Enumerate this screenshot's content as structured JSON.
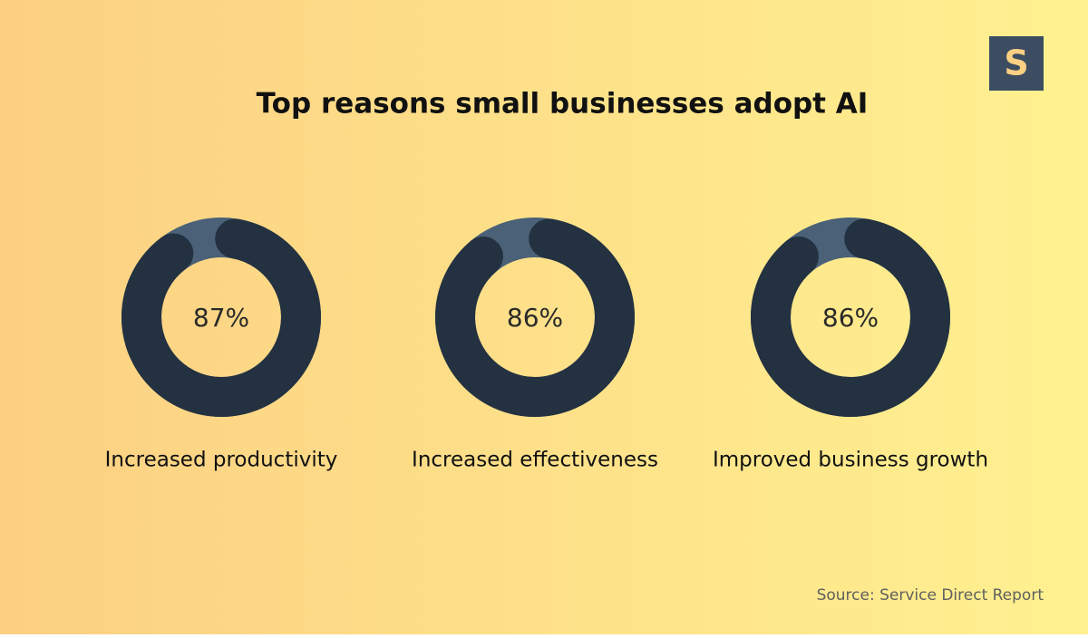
{
  "title": "Top reasons small businesses adopt AI",
  "logo": "S",
  "source": "Source: Service Direct Report",
  "chart_data": [
    {
      "type": "donut",
      "label": "Increased productivity",
      "values": [
        87
      ],
      "value_labels": [
        "87%"
      ],
      "color": "#233140",
      "track_color": "#4a6178"
    },
    {
      "type": "donut",
      "label": "Increased effectiveness",
      "values": [
        86
      ],
      "value_labels": [
        "86%"
      ],
      "color": "#233140",
      "track_color": "#4a6178"
    },
    {
      "type": "donut",
      "label": "Improved business growth",
      "values": [
        86
      ],
      "value_labels": [
        "86%"
      ],
      "color": "#233140",
      "track_color": "#4a6178"
    }
  ]
}
